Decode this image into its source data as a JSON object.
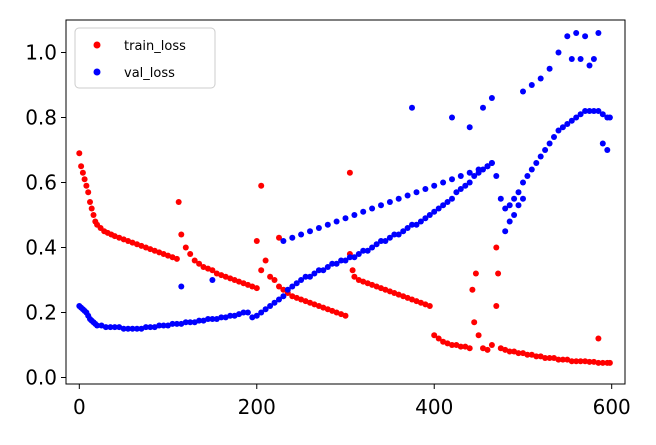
{
  "chart_data": {
    "type": "scatter",
    "title": "",
    "xlabel": "",
    "ylabel": "",
    "xlim": [
      -15,
      615
    ],
    "ylim": [
      -0.02,
      1.1
    ],
    "xticks": [
      0,
      200,
      400,
      600
    ],
    "xtick_labels": [
      "0",
      "200",
      "400",
      "600"
    ],
    "yticks": [
      0.0,
      0.2,
      0.4,
      0.6,
      0.8,
      1.0
    ],
    "ytick_labels": [
      "0.0",
      "0.2",
      "0.4",
      "0.6",
      "0.8",
      "1.0"
    ],
    "grid": false,
    "legend": "top-left",
    "series": [
      {
        "name": "train_loss",
        "color": "#ff0000",
        "x": [
          0,
          2,
          4,
          6,
          8,
          10,
          12,
          14,
          16,
          18,
          20,
          24,
          28,
          32,
          36,
          40,
          45,
          50,
          55,
          60,
          65,
          70,
          75,
          80,
          85,
          90,
          95,
          100,
          105,
          110,
          115,
          120,
          125,
          130,
          135,
          140,
          145,
          150,
          155,
          160,
          165,
          170,
          175,
          180,
          185,
          190,
          195,
          200,
          205,
          210,
          215,
          220,
          225,
          230,
          235,
          240,
          245,
          250,
          255,
          260,
          265,
          270,
          275,
          280,
          285,
          290,
          295,
          300,
          305,
          308,
          310,
          315,
          320,
          325,
          330,
          335,
          340,
          345,
          350,
          355,
          360,
          365,
          370,
          375,
          380,
          385,
          390,
          395,
          400,
          405,
          410,
          415,
          420,
          425,
          430,
          435,
          440,
          445,
          450,
          455,
          460,
          465,
          470,
          475,
          480,
          485,
          490,
          495,
          500,
          505,
          510,
          515,
          520,
          525,
          530,
          535,
          540,
          545,
          550,
          555,
          560,
          565,
          570,
          575,
          580,
          585,
          590,
          595,
          598,
          205,
          200,
          225,
          305,
          112,
          447,
          470,
          472,
          443,
          585
        ],
        "y": [
          0.69,
          0.65,
          0.63,
          0.61,
          0.59,
          0.57,
          0.54,
          0.52,
          0.5,
          0.48,
          0.47,
          0.46,
          0.45,
          0.445,
          0.44,
          0.435,
          0.43,
          0.425,
          0.42,
          0.415,
          0.41,
          0.405,
          0.4,
          0.395,
          0.39,
          0.385,
          0.38,
          0.375,
          0.37,
          0.365,
          0.44,
          0.4,
          0.38,
          0.36,
          0.35,
          0.34,
          0.335,
          0.33,
          0.32,
          0.315,
          0.31,
          0.305,
          0.3,
          0.295,
          0.29,
          0.285,
          0.28,
          0.275,
          0.33,
          0.36,
          0.31,
          0.3,
          0.28,
          0.27,
          0.26,
          0.25,
          0.245,
          0.24,
          0.235,
          0.23,
          0.225,
          0.22,
          0.215,
          0.21,
          0.205,
          0.2,
          0.195,
          0.19,
          0.38,
          0.33,
          0.31,
          0.3,
          0.295,
          0.29,
          0.285,
          0.28,
          0.275,
          0.27,
          0.265,
          0.26,
          0.255,
          0.25,
          0.245,
          0.24,
          0.235,
          0.23,
          0.225,
          0.22,
          0.13,
          0.12,
          0.11,
          0.105,
          0.1,
          0.1,
          0.095,
          0.095,
          0.09,
          0.17,
          0.13,
          0.09,
          0.085,
          0.1,
          0.22,
          0.09,
          0.085,
          0.08,
          0.08,
          0.075,
          0.075,
          0.07,
          0.07,
          0.065,
          0.065,
          0.06,
          0.06,
          0.06,
          0.055,
          0.055,
          0.055,
          0.05,
          0.05,
          0.05,
          0.05,
          0.048,
          0.048,
          0.045,
          0.045,
          0.045,
          0.045,
          0.59,
          0.42,
          0.43,
          0.63,
          0.54,
          0.32,
          0.4,
          0.32,
          0.27,
          0.12
        ]
      },
      {
        "name": "val_loss",
        "color": "#0000ff",
        "x": [
          0,
          2,
          4,
          6,
          8,
          10,
          12,
          14,
          16,
          18,
          20,
          25,
          30,
          35,
          40,
          45,
          50,
          55,
          60,
          65,
          70,
          75,
          80,
          85,
          90,
          95,
          100,
          105,
          110,
          115,
          120,
          125,
          130,
          135,
          140,
          145,
          150,
          155,
          160,
          165,
          170,
          175,
          180,
          185,
          190,
          195,
          200,
          205,
          210,
          215,
          220,
          225,
          230,
          235,
          240,
          245,
          250,
          255,
          260,
          265,
          270,
          275,
          280,
          285,
          290,
          295,
          300,
          305,
          310,
          315,
          320,
          325,
          330,
          335,
          340,
          345,
          350,
          355,
          360,
          365,
          370,
          375,
          380,
          385,
          390,
          395,
          400,
          405,
          410,
          415,
          420,
          425,
          430,
          435,
          440,
          445,
          450,
          455,
          460,
          465,
          470,
          475,
          480,
          485,
          490,
          495,
          500,
          505,
          510,
          515,
          520,
          525,
          530,
          535,
          540,
          545,
          550,
          555,
          560,
          565,
          570,
          575,
          580,
          585,
          590,
          595,
          598,
          230,
          240,
          250,
          260,
          270,
          280,
          290,
          300,
          310,
          320,
          330,
          340,
          350,
          360,
          370,
          380,
          390,
          400,
          410,
          420,
          430,
          440,
          450,
          460,
          465,
          375,
          420,
          440,
          455,
          465,
          500,
          510,
          520,
          530,
          540,
          550,
          555,
          560,
          565,
          570,
          575,
          580,
          585,
          590,
          595,
          115,
          150,
          480,
          485,
          490,
          495,
          500
        ],
        "y": [
          0.22,
          0.215,
          0.21,
          0.205,
          0.2,
          0.19,
          0.18,
          0.175,
          0.17,
          0.165,
          0.16,
          0.16,
          0.155,
          0.155,
          0.155,
          0.155,
          0.15,
          0.15,
          0.15,
          0.15,
          0.15,
          0.155,
          0.155,
          0.155,
          0.16,
          0.16,
          0.16,
          0.165,
          0.165,
          0.165,
          0.17,
          0.17,
          0.17,
          0.175,
          0.175,
          0.18,
          0.18,
          0.18,
          0.185,
          0.185,
          0.19,
          0.19,
          0.195,
          0.2,
          0.2,
          0.185,
          0.19,
          0.2,
          0.21,
          0.22,
          0.23,
          0.24,
          0.25,
          0.27,
          0.28,
          0.29,
          0.3,
          0.31,
          0.31,
          0.32,
          0.33,
          0.33,
          0.34,
          0.35,
          0.35,
          0.36,
          0.36,
          0.37,
          0.37,
          0.38,
          0.39,
          0.39,
          0.4,
          0.41,
          0.42,
          0.42,
          0.43,
          0.44,
          0.44,
          0.45,
          0.46,
          0.47,
          0.47,
          0.48,
          0.49,
          0.5,
          0.51,
          0.52,
          0.53,
          0.54,
          0.55,
          0.57,
          0.58,
          0.59,
          0.6,
          0.62,
          0.63,
          0.64,
          0.65,
          0.66,
          0.62,
          0.55,
          0.52,
          0.53,
          0.55,
          0.57,
          0.6,
          0.62,
          0.64,
          0.66,
          0.68,
          0.7,
          0.72,
          0.74,
          0.76,
          0.77,
          0.78,
          0.79,
          0.8,
          0.81,
          0.82,
          0.82,
          0.82,
          0.82,
          0.81,
          0.8,
          0.8,
          0.42,
          0.43,
          0.44,
          0.45,
          0.46,
          0.47,
          0.48,
          0.49,
          0.5,
          0.51,
          0.52,
          0.53,
          0.54,
          0.55,
          0.56,
          0.57,
          0.58,
          0.59,
          0.6,
          0.61,
          0.62,
          0.63,
          0.64,
          0.65,
          0.66,
          0.83,
          0.8,
          0.77,
          0.83,
          0.86,
          0.88,
          0.9,
          0.92,
          0.95,
          1.0,
          1.05,
          0.98,
          1.06,
          0.98,
          1.05,
          0.96,
          0.98,
          1.06,
          0.72,
          0.7,
          0.28,
          0.3,
          0.45,
          0.48,
          0.5,
          0.53,
          0.55
        ]
      }
    ]
  }
}
